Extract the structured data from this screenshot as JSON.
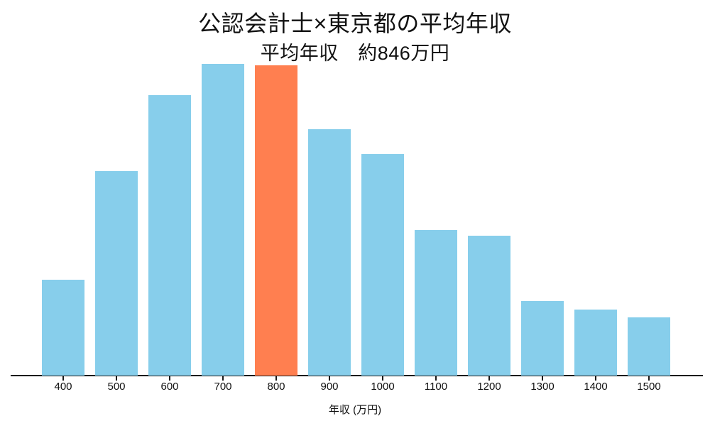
{
  "chart_data": {
    "type": "bar",
    "title": "公認会計士×東京都の平均年収",
    "subtitle": "平均年収　約846万円",
    "xlabel": "年収 (万円)",
    "ylabel": "",
    "y_axis_visible": false,
    "grid": false,
    "legend_position": "none",
    "value_note": "no y-axis or data labels shown; values are bar heights relative to the tallest bar (700 class = 1.0)",
    "categories": [
      "400",
      "500",
      "600",
      "700",
      "800",
      "900",
      "1000",
      "1100",
      "1200",
      "1300",
      "1400",
      "1500"
    ],
    "values": [
      0.308,
      0.656,
      0.9,
      1.0,
      0.995,
      0.79,
      0.711,
      0.467,
      0.449,
      0.239,
      0.212,
      0.187
    ],
    "highlighted_category": "800",
    "average_income_value": "約846万円",
    "colors": {
      "bar": "#87CEEB",
      "highlight": "#FF7F50",
      "axis": "#1a1a1a",
      "text": "#111111",
      "background": "#FFFFFF"
    }
  }
}
